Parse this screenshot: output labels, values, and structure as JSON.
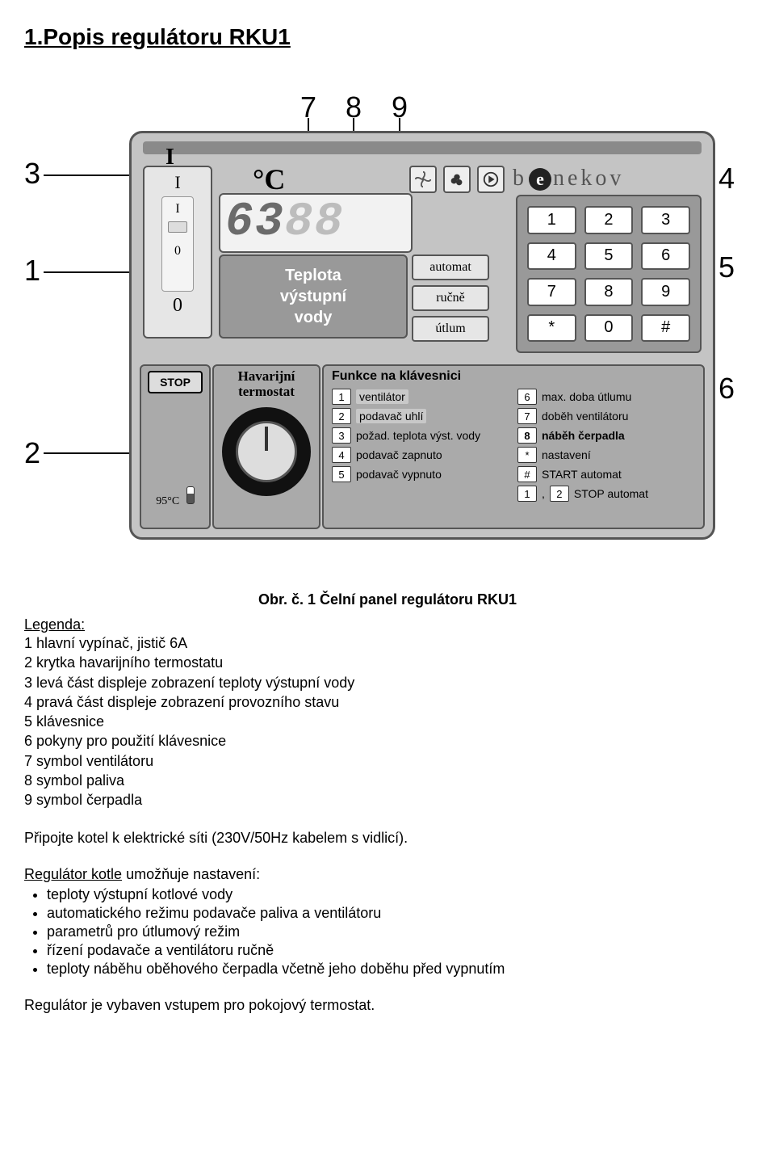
{
  "title": "1.Popis regulátoru RKU1",
  "callouts": {
    "n1": "1",
    "n2": "2",
    "n3": "3",
    "n4": "4",
    "n5": "5",
    "n6": "6",
    "n7": "7",
    "n8": "8",
    "n9": "9"
  },
  "panel": {
    "big_I": "I",
    "switch": {
      "top": "I",
      "mid": "I",
      "zero_inner": "0",
      "zero_outer": "0"
    },
    "degC": "°C",
    "display": {
      "d1": "6",
      "d2": "3",
      "d3": "8",
      "d4": "8"
    },
    "brand_b": "b",
    "brand_e": "e",
    "brand_rest": "nekov",
    "desc": "Teplota\nvýstupní\nvody",
    "modes": {
      "m1": "automat",
      "m2": "ručně",
      "m3": "útlum"
    },
    "keypad": [
      "1",
      "2",
      "3",
      "4",
      "5",
      "6",
      "7",
      "8",
      "9",
      "*",
      "0",
      "#"
    ],
    "stop": {
      "label": "STOP",
      "temp": "95°C"
    },
    "hav": {
      "title": "Havarijní\ntermostat"
    },
    "func": {
      "title": "Funkce na klávesnici",
      "left": [
        {
          "k": "1",
          "t": "ventilátor",
          "hl": true
        },
        {
          "k": "2",
          "t": "podavač uhlí",
          "hl": true
        },
        {
          "k": "3",
          "t": "požad. teplota výst. vody"
        },
        {
          "k": "4",
          "t": "podavač zapnuto"
        },
        {
          "k": "5",
          "t": "podavač vypnuto"
        }
      ],
      "right": [
        {
          "k": "6",
          "t": "max. doba útlumu"
        },
        {
          "k": "7",
          "t": "doběh ventilátoru"
        },
        {
          "k": "8",
          "t": "náběh čerpadla",
          "bold": true
        },
        {
          "k": "*",
          "t": "nastavení"
        },
        {
          "k": "#",
          "t": "START automat"
        },
        {
          "k": "1 , 2",
          "t": "STOP automat",
          "dual": true
        }
      ]
    }
  },
  "caption": "Obr. č. 1  Čelní panel regulátoru RKU1",
  "legend": {
    "head": "Legenda:",
    "items": [
      "1 hlavní vypínač, jistič 6A",
      "2 krytka havarijního termostatu",
      "3 levá část displeje zobrazení teploty výstupní vody",
      "4 pravá část displeje zobrazení provozního stavu",
      "5 klávesnice",
      "6 pokyny pro použití klávesnice",
      "7 symbol ventilátoru",
      "8 symbol paliva",
      "9 symbol čerpadla"
    ]
  },
  "p1": "Připojte kotel k elektrické síti (230V/50Hz kabelem s vidlicí).",
  "reg": {
    "head_u": "Regulátor kotle",
    "head_rest": " umožňuje nastavení:",
    "items": [
      "teploty výstupní kotlové vody",
      "automatického režimu podavače paliva a ventilátoru",
      "parametrů pro útlumový režim",
      "řízení podavače a ventilátoru ručně",
      "teploty náběhu oběhového čerpadla včetně jeho doběhu před vypnutím"
    ]
  },
  "p2": "Regulátor je vybaven vstupem pro pokojový termostat."
}
